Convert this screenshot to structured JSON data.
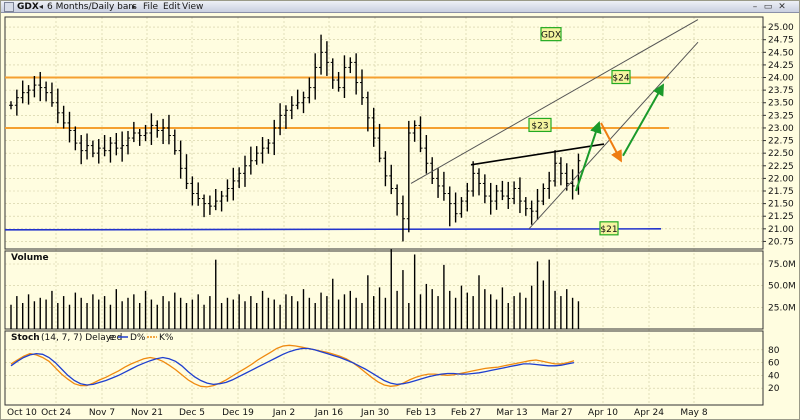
{
  "titlebar": {
    "symbol": "GDX",
    "period_label": "6 Months/Daily bars",
    "menu": [
      "File",
      "Edit",
      "View"
    ],
    "prev_icon": "arrow-left-icon",
    "next_icon": "arrow-right-icon",
    "window_controls": [
      "minimize-icon",
      "restore-icon",
      "close-icon"
    ]
  },
  "colors": {
    "background": "#fffde0",
    "price_bars": "#000000",
    "resistance": "#f5a030",
    "support": "#2233cc",
    "channel": "#555555",
    "projection_up": "#1a9a2a",
    "projection_down": "#ef7d12",
    "d_line": "#1f3fcf",
    "k_line": "#ef8a10",
    "label_bg": "#f4f4a0",
    "label_border": "#22aa22"
  },
  "chart_data": [
    {
      "type": "bar",
      "panel": "price",
      "ylim": [
        20.6,
        25.2
      ],
      "y_ticks": [
        "25.00",
        "24.75",
        "24.50",
        "24.25",
        "24.00",
        "23.75",
        "23.50",
        "23.25",
        "23.00",
        "22.75",
        "22.50",
        "22.25",
        "22.00",
        "21.75",
        "21.50",
        "21.25",
        "21.00",
        "20.75"
      ],
      "x_ticks": [
        "Oct 10",
        "Oct 24",
        "Nov 7",
        "Nov 21",
        "Dec 5",
        "Dec 19",
        "Jan 2",
        "Jan 16",
        "Jan 30",
        "Feb 13",
        "Feb 27",
        "Mar 13",
        "Mar 27",
        "Apr 10",
        "Apr 24",
        "May 8"
      ],
      "grid": true,
      "closes": [
        23.45,
        23.6,
        23.7,
        23.75,
        23.85,
        23.8,
        23.7,
        23.5,
        23.3,
        23.1,
        22.95,
        22.7,
        22.55,
        22.65,
        22.5,
        22.6,
        22.55,
        22.7,
        22.6,
        22.65,
        22.8,
        22.9,
        22.85,
        22.9,
        23.05,
        22.95,
        23.0,
        22.85,
        22.55,
        22.2,
        21.9,
        21.7,
        21.6,
        21.5,
        21.45,
        21.55,
        21.65,
        21.8,
        21.95,
        22.1,
        22.25,
        22.35,
        22.5,
        22.6,
        22.7,
        23.0,
        23.25,
        23.35,
        23.45,
        23.5,
        23.6,
        23.8,
        24.2,
        24.5,
        24.3,
        23.95,
        23.8,
        24.2,
        24.3,
        23.9,
        23.6,
        23.2,
        22.8,
        22.4,
        22.05,
        21.8,
        21.5,
        21.2,
        22.9,
        23.05,
        22.6,
        22.3,
        22.0,
        21.85,
        21.7,
        21.5,
        21.3,
        21.55,
        21.75,
        22.1,
        21.9,
        21.65,
        21.55,
        21.75,
        21.65,
        21.6,
        21.8,
        21.55,
        21.4,
        21.35,
        21.55,
        21.8,
        21.95,
        22.3,
        22.1,
        21.9,
        21.85,
        22.35
      ],
      "resistance_levels": [
        24.0,
        23.0
      ],
      "support_level": 21.0,
      "labels": [
        "GDX",
        "$24",
        "$23",
        "$21"
      ]
    },
    {
      "type": "bar",
      "panel": "volume",
      "title": "Volume",
      "ylim": [
        0,
        90
      ],
      "y_ticks": [
        "75.0M",
        "50.0M",
        "25.0M"
      ],
      "values_millions": [
        28,
        38,
        30,
        40,
        32,
        36,
        34,
        44,
        30,
        38,
        28,
        42,
        36,
        30,
        40,
        34,
        38,
        28,
        46,
        32,
        36,
        40,
        30,
        44,
        34,
        28,
        38,
        32,
        42,
        36,
        30,
        34,
        40,
        28,
        38,
        80,
        30,
        36,
        34,
        40,
        32,
        38,
        30,
        44,
        36,
        34,
        28,
        40,
        38,
        32,
        46,
        36,
        30,
        42,
        38,
        58,
        34,
        40,
        44,
        36,
        30,
        62,
        38,
        48,
        36,
        92,
        44,
        68,
        30,
        86,
        40,
        52,
        46,
        38,
        74,
        44,
        36,
        50,
        42,
        38,
        62,
        46,
        40,
        34,
        48,
        30,
        38,
        42,
        36,
        50,
        78,
        56,
        80,
        44,
        38,
        46,
        36,
        32
      ]
    },
    {
      "type": "line",
      "panel": "stochastic",
      "title": "Stoch",
      "params": "(14, 7, 7) Delayed",
      "ylim": [
        0,
        100
      ],
      "y_ticks": [
        "80",
        "60",
        "40",
        "20"
      ],
      "series": [
        {
          "name": "D%",
          "values": [
            55,
            62,
            68,
            72,
            74,
            73,
            68,
            60,
            50,
            40,
            32,
            27,
            25,
            26,
            29,
            32,
            36,
            40,
            45,
            50,
            55,
            59,
            63,
            66,
            68,
            66,
            62,
            55,
            46,
            38,
            32,
            28,
            26,
            27,
            29,
            33,
            38,
            43,
            48,
            53,
            58,
            63,
            68,
            73,
            77,
            80,
            82,
            82,
            80,
            77,
            74,
            71,
            68,
            64,
            60,
            55,
            50,
            44,
            38,
            32,
            28,
            26,
            27,
            29,
            32,
            35,
            38,
            40,
            42,
            43,
            43,
            42,
            42,
            43,
            44,
            46,
            48,
            50,
            52,
            54,
            56,
            58,
            58,
            57,
            56,
            55,
            55,
            56,
            58,
            60
          ]
        },
        {
          "name": "K%",
          "values": [
            58,
            64,
            70,
            74,
            72,
            68,
            62,
            52,
            42,
            34,
            27,
            24,
            24,
            28,
            33,
            37,
            42,
            47,
            53,
            58,
            62,
            66,
            68,
            66,
            62,
            56,
            49,
            41,
            33,
            27,
            23,
            22,
            24,
            28,
            33,
            39,
            45,
            51,
            57,
            64,
            70,
            76,
            82,
            86,
            87,
            86,
            84,
            82,
            80,
            78,
            76,
            73,
            70,
            66,
            60,
            53,
            45,
            37,
            30,
            25,
            23,
            24,
            28,
            33,
            37,
            40,
            42,
            42,
            41,
            40,
            41,
            43,
            45,
            47,
            49,
            51,
            52,
            53,
            55,
            57,
            59,
            61,
            63,
            64,
            62,
            60,
            58,
            58,
            60,
            63
          ]
        }
      ]
    }
  ]
}
